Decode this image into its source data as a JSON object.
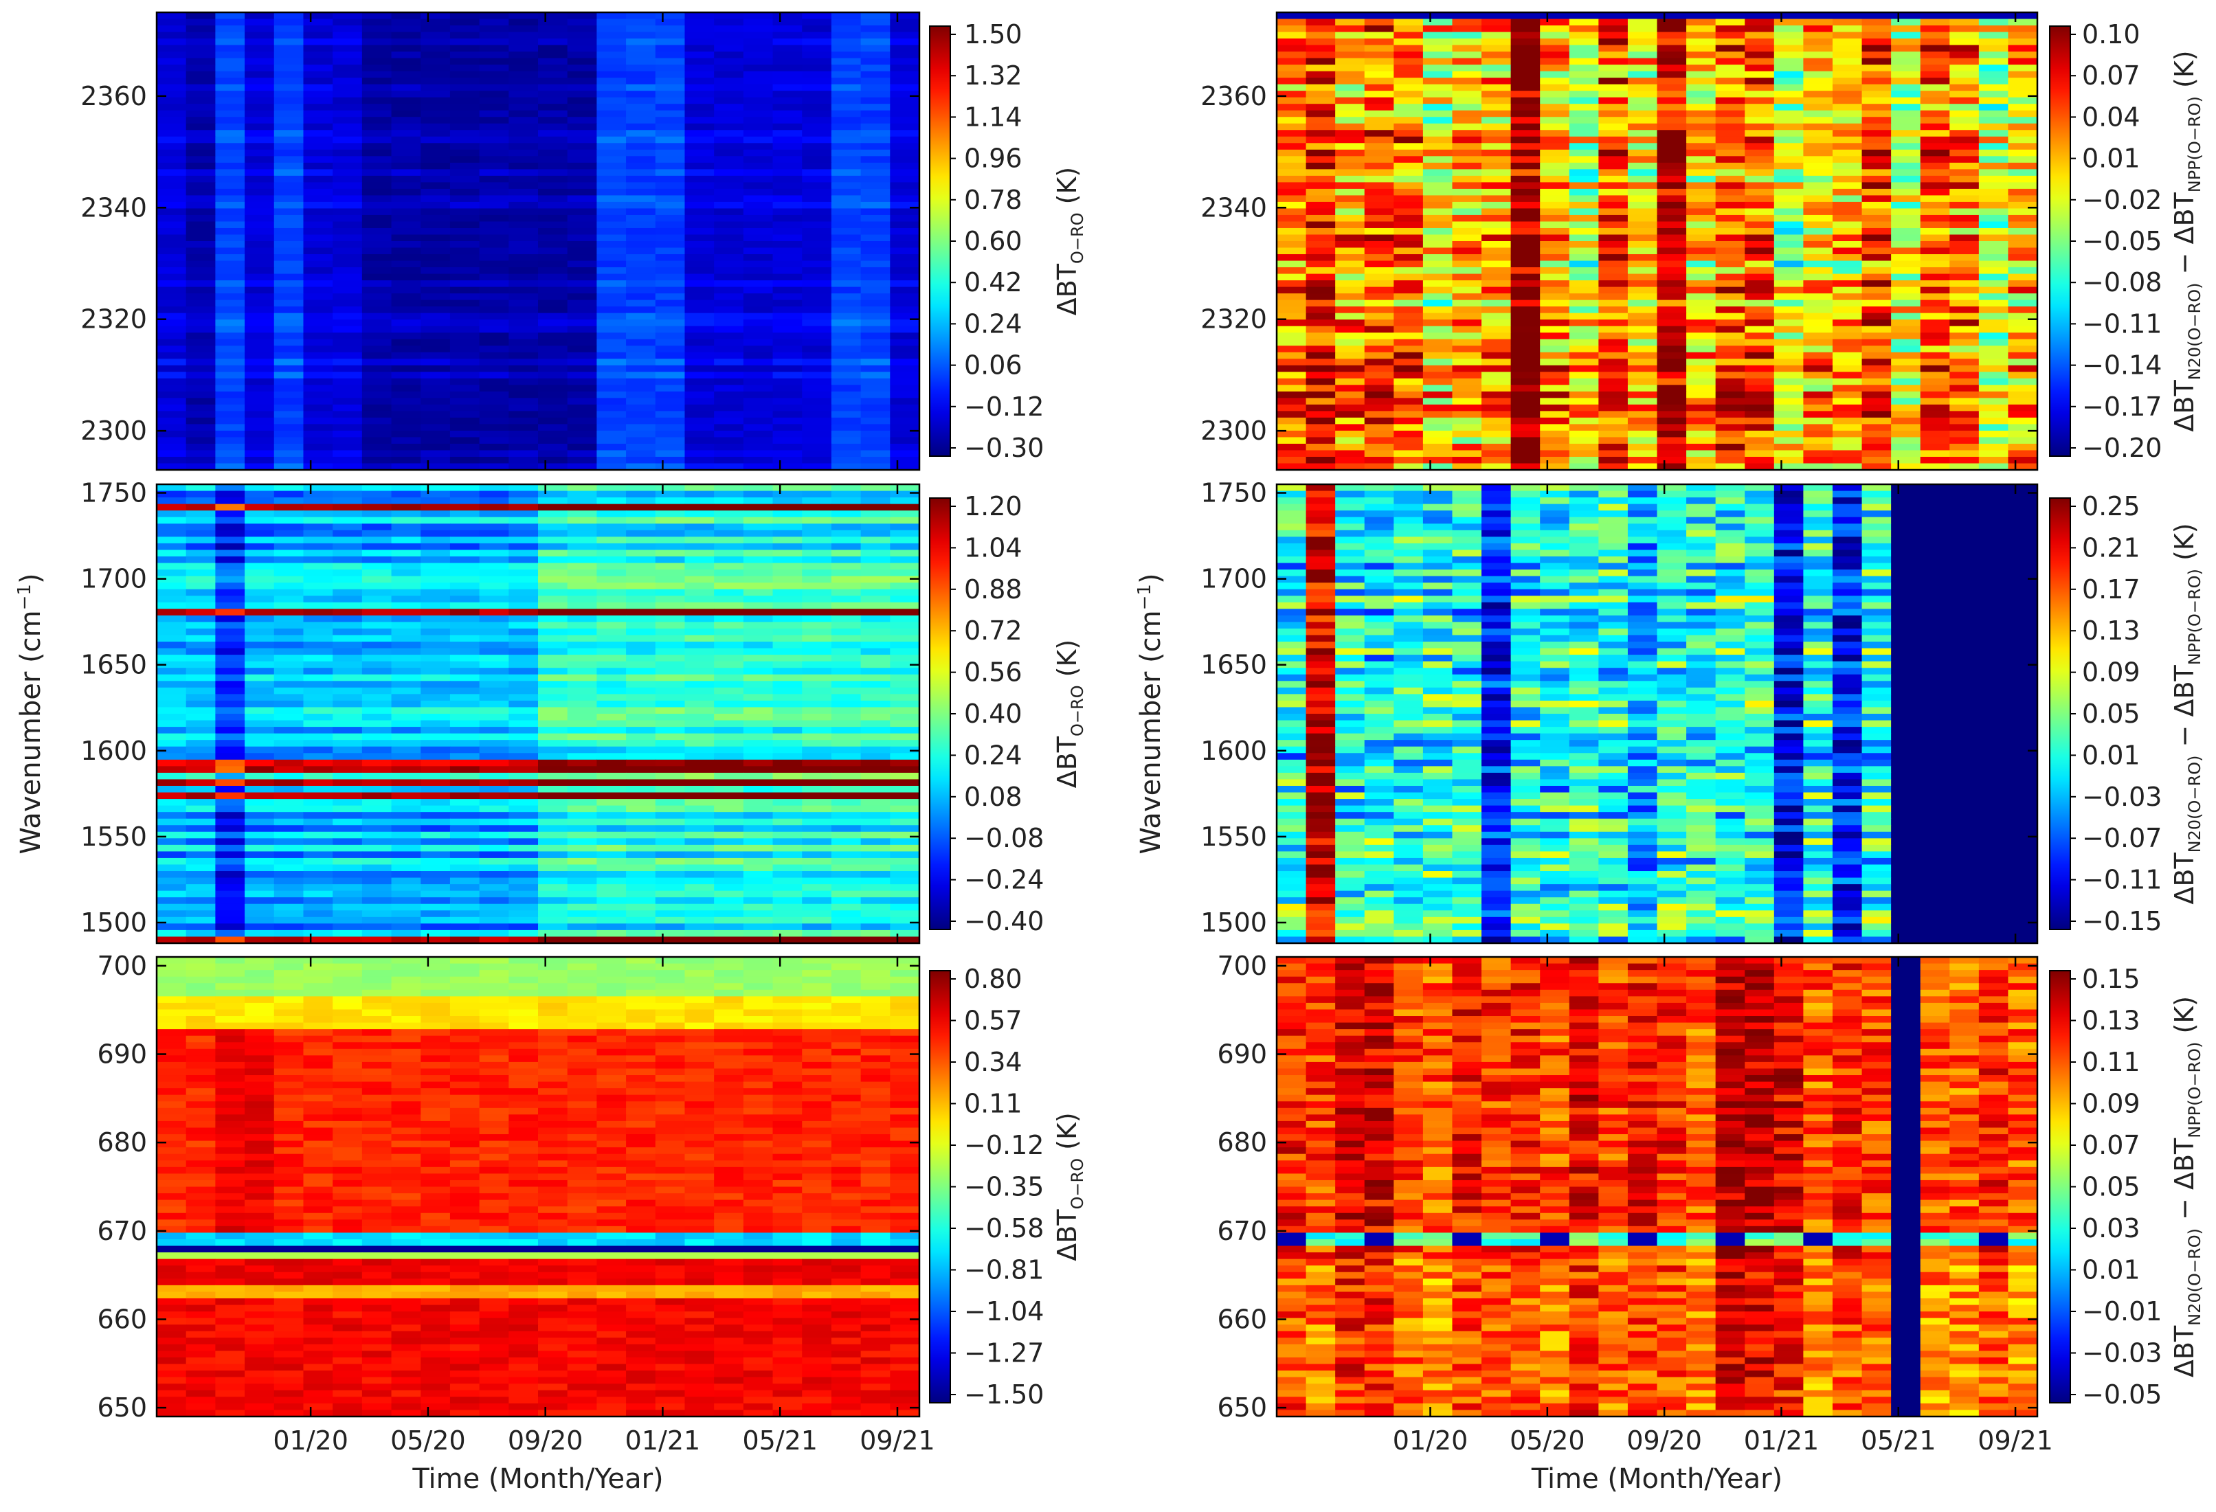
{
  "chart_data": [
    {
      "type": "heatmap",
      "position": "top-left",
      "ylim": [
        2293,
        2375
      ],
      "yticks": [
        "2300",
        "2320",
        "2340",
        "2360"
      ],
      "xticks": [],
      "colorbar": {
        "ticks": [
          "1.50",
          "1.32",
          "1.14",
          "0.96",
          "0.78",
          "0.60",
          "0.42",
          "0.24",
          "0.06",
          "−0.12",
          "−0.30"
        ],
        "range": [
          -0.3,
          1.5
        ],
        "label": "ΔBT",
        "label_sub": "O−RO",
        "label_unit": "(K)"
      },
      "pattern": "co2_band_blue"
    },
    {
      "type": "heatmap",
      "position": "middle-left",
      "ylim": [
        1488,
        1755
      ],
      "yticks": [
        "1500",
        "1550",
        "1600",
        "1650",
        "1700",
        "1750"
      ],
      "xticks": [],
      "colorbar": {
        "ticks": [
          "1.20",
          "1.04",
          "0.88",
          "0.72",
          "0.56",
          "0.40",
          "0.24",
          "0.08",
          "−0.08",
          "−0.24",
          "−0.40"
        ],
        "range": [
          -0.4,
          1.2
        ],
        "label": "ΔBT",
        "label_sub": "O−RO",
        "label_unit": "(K)"
      },
      "pattern": "water_vapor_band"
    },
    {
      "type": "heatmap",
      "position": "bottom-left",
      "ylim": [
        649,
        701
      ],
      "yticks": [
        "650",
        "660",
        "670",
        "680",
        "690",
        "700"
      ],
      "xticks": [
        "01/20",
        "05/20",
        "09/20",
        "01/21",
        "05/21",
        "09/21"
      ],
      "xlabel": "Time (Month/Year)",
      "colorbar": {
        "ticks": [
          "0.80",
          "0.57",
          "0.34",
          "0.11",
          "−0.12",
          "−0.35",
          "−0.58",
          "−0.81",
          "−1.04",
          "−1.27",
          "−1.50"
        ],
        "range": [
          -1.5,
          0.8
        ],
        "label": "ΔBT",
        "label_sub": "O−RO",
        "label_unit": "(K)"
      },
      "pattern": "co2_15um_band"
    },
    {
      "type": "heatmap",
      "position": "top-right",
      "ylim": [
        2293,
        2375
      ],
      "yticks": [
        "2300",
        "2320",
        "2340",
        "2360"
      ],
      "xticks": [],
      "colorbar": {
        "ticks": [
          "0.10",
          "0.07",
          "0.04",
          "0.01",
          "−0.02",
          "−0.05",
          "−0.08",
          "−0.11",
          "−0.14",
          "−0.17",
          "−0.20"
        ],
        "range": [
          -0.2,
          0.1
        ],
        "label": "ΔBT",
        "label_sub": "N20(O−RO)",
        "label_mid": " − ΔBT",
        "label_sub2": "NPP(O−RO)",
        "label_unit": "(K)"
      },
      "pattern": "diff_mixed"
    },
    {
      "type": "heatmap",
      "position": "middle-right",
      "ylim": [
        1488,
        1755
      ],
      "yticks": [
        "1500",
        "1550",
        "1600",
        "1650",
        "1700",
        "1750"
      ],
      "xticks": [],
      "colorbar": {
        "ticks": [
          "0.25",
          "0.21",
          "0.17",
          "0.13",
          "0.09",
          "0.05",
          "0.01",
          "−0.03",
          "−0.07",
          "−0.11",
          "−0.15"
        ],
        "range": [
          -0.15,
          0.25
        ],
        "label": "ΔBT",
        "label_sub": "N20(O−RO)",
        "label_mid": " − ΔBT",
        "label_sub2": "NPP(O−RO)",
        "label_unit": "(K)"
      },
      "pattern": "diff_water_vapor"
    },
    {
      "type": "heatmap",
      "position": "bottom-right",
      "ylim": [
        649,
        701
      ],
      "yticks": [
        "650",
        "660",
        "670",
        "680",
        "690",
        "700"
      ],
      "xticks": [
        "01/20",
        "05/20",
        "09/20",
        "01/21",
        "05/21",
        "09/21"
      ],
      "xlabel": "Time (Month/Year)",
      "colorbar": {
        "ticks": [
          "0.15",
          "0.13",
          "0.11",
          "0.09",
          "0.07",
          "0.05",
          "0.03",
          "0.01",
          "−0.01",
          "−0.03",
          "−0.05"
        ],
        "range": [
          -0.05,
          0.15
        ],
        "label": "ΔBT",
        "label_sub": "N20(O−RO)",
        "label_mid": " − ΔBT",
        "label_sub2": "NPP(O−RO)",
        "label_unit": "(K)"
      },
      "pattern": "diff_co2_15um"
    }
  ],
  "shared": {
    "ylabel": "Wavenumber",
    "ylabel_unit": "(cm",
    "ylabel_exp": "−1",
    "ylabel_close": ")",
    "xlabel": "Time (Month/Year)"
  }
}
